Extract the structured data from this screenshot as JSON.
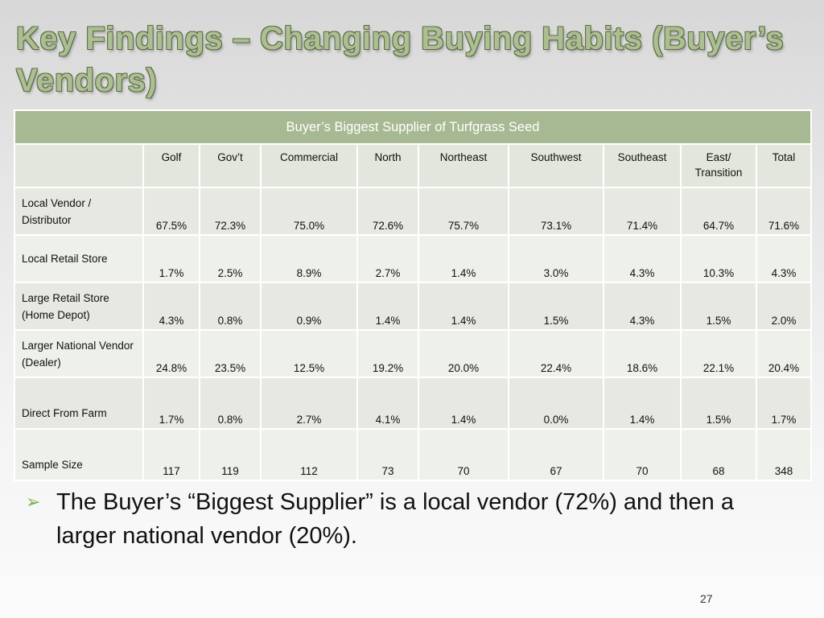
{
  "slide": {
    "title": "Key Findings – Changing Buying Habits (Buyer’s Vendors)",
    "page_number": "27"
  },
  "table": {
    "caption": "Buyer’s Biggest Supplier of Turfgrass Seed",
    "corner": "",
    "columns": [
      "Golf",
      "Gov’t",
      "Commercial",
      "North",
      "Northeast",
      "Southwest",
      "Southeast",
      "East/ Transition",
      "Total"
    ],
    "rows": [
      {
        "label": "Local Vendor / Distributor",
        "values": [
          "67.5%",
          "72.3%",
          "75.0%",
          "72.6%",
          "75.7%",
          "73.1%",
          "71.4%",
          "64.7%",
          "71.6%"
        ]
      },
      {
        "label": "Local Retail Store",
        "values": [
          "1.7%",
          "2.5%",
          "8.9%",
          "2.7%",
          "1.4%",
          "3.0%",
          "4.3%",
          "10.3%",
          "4.3%"
        ]
      },
      {
        "label": "Large Retail Store (Home Depot)",
        "values": [
          "4.3%",
          "0.8%",
          "0.9%",
          "1.4%",
          "1.4%",
          "1.5%",
          "4.3%",
          "1.5%",
          "2.0%"
        ]
      },
      {
        "label": "Larger National Vendor (Dealer)",
        "values": [
          "24.8%",
          "23.5%",
          "12.5%",
          "19.2%",
          "20.0%",
          "22.4%",
          "18.6%",
          "22.1%",
          "20.4%"
        ]
      },
      {
        "label": "Direct From Farm",
        "values": [
          "1.7%",
          "0.8%",
          "2.7%",
          "4.1%",
          "1.4%",
          "0.0%",
          "1.4%",
          "1.5%",
          "1.7%"
        ]
      },
      {
        "label": "Sample Size",
        "values": [
          "117",
          "119",
          "112",
          "73",
          "70",
          "67",
          "70",
          "68",
          "348"
        ]
      }
    ]
  },
  "bullet": {
    "marker_icon": "arrow-bullet-icon",
    "marker_glyph": "➢",
    "text": "The Buyer’s “Biggest Supplier” is a local vendor (72%) and then a larger national vendor (20%)."
  },
  "colors": {
    "title_fill": "#adbe93",
    "title_outline": "#5b6e44",
    "header_band": "#a7b992",
    "bullet_marker": "#7fae4d"
  }
}
